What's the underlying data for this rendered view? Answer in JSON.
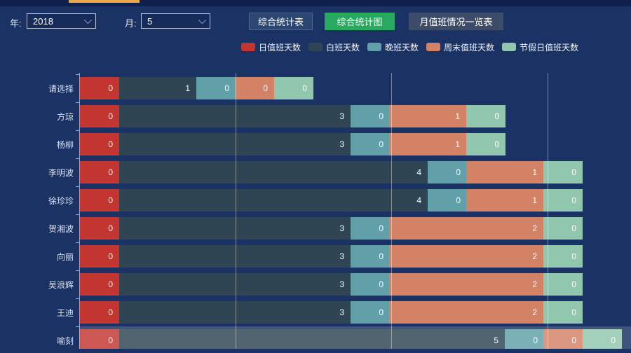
{
  "controls": {
    "year_label": "年:",
    "year_value": "2018",
    "month_label": "月:",
    "month_value": "5",
    "buttons": [
      {
        "label": "综合统计表",
        "active": false
      },
      {
        "label": "综合统计图",
        "active": true
      },
      {
        "label": "月值班情况一览表",
        "active": false
      }
    ]
  },
  "colors": {
    "background": "#1a3264",
    "top_strip": "#111f4e",
    "tab_indicator_orange": "#eca74b",
    "active_button_green": "#27a95f",
    "inactive_button_dark": "#2c4672",
    "overview_button_grey": "#3d4c68",
    "gridline_white": "rgba(255,255,255,0.42)",
    "row_highlight": "rgba(255,255,255,0.17)"
  },
  "chart_data": {
    "type": "bar",
    "orientation": "horizontal",
    "stacked": true,
    "legend_position": "top",
    "grid": true,
    "x_gridlines_at": [
      2,
      4,
      6
    ],
    "xlim": [
      0,
      7
    ],
    "categories": [
      "请选择",
      "方琼",
      "杨柳",
      "李明波",
      "徐珍珍",
      "贺湘波",
      "向丽",
      "吴浪辉",
      "王迪",
      "喻刻"
    ],
    "series": [
      {
        "name": "日值班天数",
        "color": "#c23531",
        "values": [
          0,
          0,
          0,
          0,
          0,
          0,
          0,
          0,
          0,
          0
        ]
      },
      {
        "name": "白班天数",
        "color": "#2f4554",
        "values": [
          1,
          3,
          3,
          4,
          4,
          3,
          3,
          3,
          3,
          5
        ]
      },
      {
        "name": "晚班天数",
        "color": "#61a0a8",
        "values": [
          0,
          0,
          0,
          0,
          0,
          0,
          0,
          0,
          0,
          0
        ]
      },
      {
        "name": "周末值班天数",
        "color": "#d48265",
        "values": [
          0,
          1,
          1,
          1,
          1,
          2,
          2,
          2,
          2,
          0
        ]
      },
      {
        "name": "节假日值班天数",
        "color": "#91c7ae",
        "values": [
          0,
          0,
          0,
          0,
          0,
          0,
          0,
          0,
          0,
          0
        ]
      }
    ],
    "highlighted_category": "喻刻",
    "note_zero_segments_rendered_with_min_width": true
  }
}
